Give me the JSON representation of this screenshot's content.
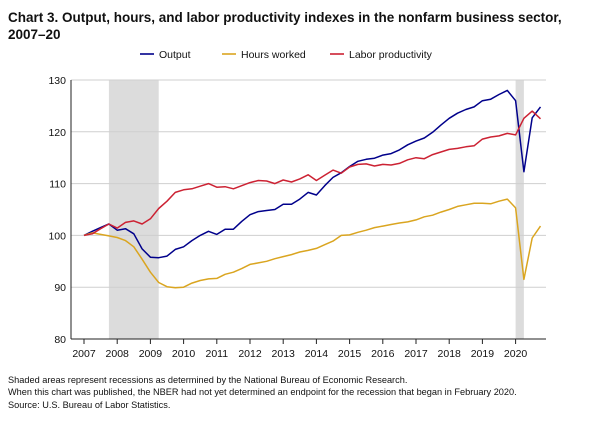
{
  "chart_data": {
    "type": "line",
    "title": "Chart 3. Output, hours, and labor productivity indexes in the nonfarm business sector, 2007–20",
    "xlabel": "",
    "ylabel": "",
    "xlim": [
      2007.0,
      2020.83
    ],
    "ylim": [
      80,
      130
    ],
    "y_ticks": [
      "80",
      "90",
      "100",
      "110",
      "120",
      "130"
    ],
    "x_ticks": [
      "2007",
      "2008",
      "2009",
      "2010",
      "2011",
      "2012",
      "2013",
      "2014",
      "2015",
      "2016",
      "2017",
      "2018",
      "2019",
      "2020"
    ],
    "grid": "horizontal",
    "legend_position": "top",
    "recessions": [
      {
        "start": 2007.75,
        "end": 2009.25
      },
      {
        "start": 2020.0,
        "end": 2020.25
      }
    ],
    "x": [
      2007.0,
      2007.25,
      2007.5,
      2007.75,
      2008.0,
      2008.25,
      2008.5,
      2008.75,
      2009.0,
      2009.25,
      2009.5,
      2009.75,
      2010.0,
      2010.25,
      2010.5,
      2010.75,
      2011.0,
      2011.25,
      2011.5,
      2011.75,
      2012.0,
      2012.25,
      2012.5,
      2012.75,
      2013.0,
      2013.25,
      2013.5,
      2013.75,
      2014.0,
      2014.25,
      2014.5,
      2014.75,
      2015.0,
      2015.25,
      2015.5,
      2015.75,
      2016.0,
      2016.25,
      2016.5,
      2016.75,
      2017.0,
      2017.25,
      2017.5,
      2017.75,
      2018.0,
      2018.25,
      2018.5,
      2018.75,
      2019.0,
      2019.25,
      2019.5,
      2019.75,
      2020.0,
      2020.25,
      2020.5,
      2020.75
    ],
    "series": [
      {
        "name": "Output",
        "color": "#00008b",
        "values": [
          100.0,
          100.8,
          101.5,
          102.2,
          101.0,
          101.3,
          100.3,
          97.4,
          95.8,
          95.7,
          96.0,
          97.3,
          97.8,
          99.0,
          100.0,
          100.8,
          100.2,
          101.2,
          101.2,
          102.7,
          104.0,
          104.6,
          104.8,
          105.0,
          106.0,
          106.0,
          107.0,
          108.3,
          107.8,
          109.6,
          111.2,
          112.1,
          113.3,
          114.3,
          114.7,
          114.9,
          115.5,
          115.8,
          116.5,
          117.5,
          118.2,
          118.8,
          119.9,
          121.3,
          122.6,
          123.6,
          124.3,
          124.8,
          126.0,
          126.3,
          127.2,
          128.0,
          126.0,
          112.3,
          122.7,
          124.8
        ]
      },
      {
        "name": "Hours worked",
        "color": "#daa520",
        "values": [
          100.0,
          100.5,
          100.2,
          99.9,
          99.6,
          99.0,
          97.8,
          95.4,
          92.9,
          90.9,
          90.1,
          89.9,
          90.0,
          90.8,
          91.3,
          91.6,
          91.7,
          92.5,
          92.9,
          93.6,
          94.4,
          94.7,
          95.0,
          95.5,
          95.9,
          96.3,
          96.8,
          97.1,
          97.5,
          98.2,
          98.9,
          100.0,
          100.1,
          100.6,
          101.0,
          101.5,
          101.8,
          102.1,
          102.4,
          102.6,
          103.0,
          103.6,
          103.9,
          104.5,
          105.0,
          105.6,
          105.9,
          106.2,
          106.2,
          106.1,
          106.6,
          107.0,
          105.3,
          91.5,
          99.5,
          101.8
        ]
      },
      {
        "name": "Labor productivity",
        "color": "#cc2233",
        "values": [
          100.0,
          100.3,
          101.3,
          102.2,
          101.4,
          102.5,
          102.8,
          102.2,
          103.2,
          105.2,
          106.6,
          108.3,
          108.8,
          109.0,
          109.5,
          110.0,
          109.3,
          109.4,
          109.0,
          109.6,
          110.2,
          110.6,
          110.5,
          110.0,
          110.7,
          110.3,
          110.9,
          111.7,
          110.6,
          111.6,
          112.6,
          112.0,
          113.2,
          113.7,
          113.8,
          113.4,
          113.7,
          113.6,
          113.9,
          114.6,
          115.0,
          114.8,
          115.6,
          116.1,
          116.6,
          116.8,
          117.1,
          117.3,
          118.6,
          119.0,
          119.2,
          119.7,
          119.4,
          122.6,
          124.0,
          122.5
        ]
      }
    ]
  },
  "notes": [
    "Shaded areas represent recessions as determined by the National Bureau of Economic Research.",
    "When this chart was published, the NBER had not yet determined an endpoint for the recession that began in February 2020.",
    "Source: U.S. Bureau of Labor Statistics."
  ]
}
